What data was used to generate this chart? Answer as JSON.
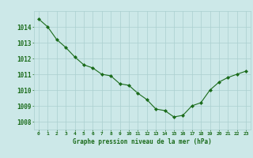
{
  "x": [
    0,
    1,
    2,
    3,
    4,
    5,
    6,
    7,
    8,
    9,
    10,
    11,
    12,
    13,
    14,
    15,
    16,
    17,
    18,
    19,
    20,
    21,
    22,
    23
  ],
  "y": [
    1014.5,
    1014.0,
    1013.2,
    1012.7,
    1012.1,
    1011.6,
    1011.4,
    1011.0,
    1010.9,
    1010.4,
    1010.3,
    1009.8,
    1009.4,
    1008.8,
    1008.7,
    1008.3,
    1008.4,
    1009.0,
    1009.2,
    1010.0,
    1010.5,
    1010.8,
    1011.0,
    1011.2
  ],
  "ylim": [
    1007.5,
    1015.0
  ],
  "yticks": [
    1008,
    1009,
    1010,
    1011,
    1012,
    1013,
    1014
  ],
  "xticks": [
    0,
    1,
    2,
    3,
    4,
    5,
    6,
    7,
    8,
    9,
    10,
    11,
    12,
    13,
    14,
    15,
    16,
    17,
    18,
    19,
    20,
    21,
    22,
    23
  ],
  "xlabel": "Graphe pression niveau de la mer (hPa)",
  "line_color": "#1a6b1a",
  "marker": "D",
  "marker_size": 2.0,
  "bg_color": "#cce8e8",
  "grid_color": "#aacfcf",
  "text_color": "#1a6b1a",
  "linewidth": 0.8
}
